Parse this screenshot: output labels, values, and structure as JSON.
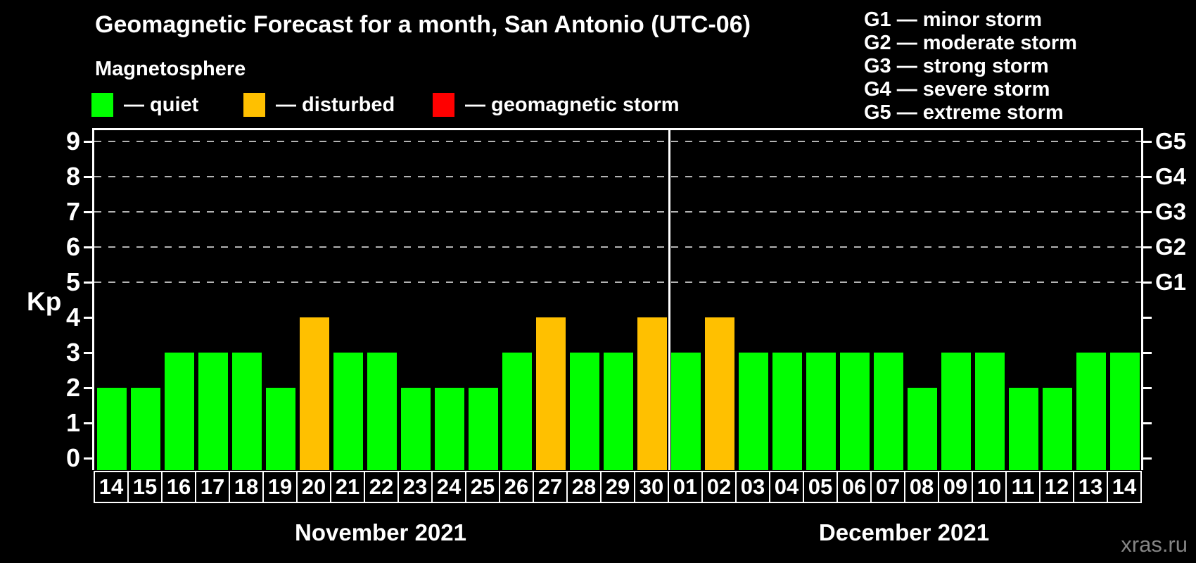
{
  "header": {
    "title": "Geomagnetic Forecast for a month, San Antonio (UTC-06)",
    "subtitle": "Magnetosphere"
  },
  "legend": {
    "items": [
      {
        "name": "quiet",
        "label": "— quiet",
        "color": "#00ff00"
      },
      {
        "name": "disturbed",
        "label": "— disturbed",
        "color": "#ffc000"
      },
      {
        "name": "storm",
        "label": "— geomagnetic storm",
        "color": "#ff0000"
      }
    ]
  },
  "g_scale_legend": {
    "lines": [
      "G1 — minor storm",
      "G2 — moderate storm",
      "G3 — strong storm",
      "G4 — severe storm",
      "G5 — extreme storm"
    ]
  },
  "watermark": "xras.ru",
  "chart_data": {
    "type": "bar",
    "title": "Geomagnetic Forecast for a month, San Antonio (UTC-06)",
    "ylabel": "Kp",
    "ylim": [
      0,
      9
    ],
    "y_ticks": [
      0,
      1,
      2,
      3,
      4,
      5,
      6,
      7,
      8,
      9
    ],
    "gridlines_at_kp": [
      5,
      6,
      7,
      8,
      9
    ],
    "grid_style": "dashed horizontal lines at storm levels only",
    "right_axis_labels": [
      {
        "label": "G1",
        "kp": 5
      },
      {
        "label": "G2",
        "kp": 6
      },
      {
        "label": "G3",
        "kp": 7
      },
      {
        "label": "G4",
        "kp": 8
      },
      {
        "label": "G5",
        "kp": 9
      }
    ],
    "status_colors": {
      "quiet": "#00ff00",
      "disturbed": "#ffc000",
      "storm": "#ff0000"
    },
    "months": [
      {
        "label": "November 2021",
        "days": [
          "14",
          "15",
          "16",
          "17",
          "18",
          "19",
          "20",
          "21",
          "22",
          "23",
          "24",
          "25",
          "26",
          "27",
          "28",
          "29",
          "30"
        ],
        "values": [
          2,
          2,
          3,
          3,
          3,
          2,
          4,
          3,
          3,
          2,
          2,
          2,
          3,
          4,
          3,
          3,
          4
        ],
        "statuses": [
          "quiet",
          "quiet",
          "quiet",
          "quiet",
          "quiet",
          "quiet",
          "disturbed",
          "quiet",
          "quiet",
          "quiet",
          "quiet",
          "quiet",
          "quiet",
          "disturbed",
          "quiet",
          "quiet",
          "disturbed"
        ]
      },
      {
        "label": "December 2021",
        "days": [
          "01",
          "02",
          "03",
          "04",
          "05",
          "06",
          "07",
          "08",
          "09",
          "10",
          "11",
          "12",
          "13",
          "14"
        ],
        "values": [
          3,
          4,
          3,
          3,
          3,
          3,
          3,
          2,
          3,
          3,
          2,
          2,
          3,
          3
        ],
        "statuses": [
          "quiet",
          "disturbed",
          "quiet",
          "quiet",
          "quiet",
          "quiet",
          "quiet",
          "quiet",
          "quiet",
          "quiet",
          "quiet",
          "quiet",
          "quiet",
          "quiet"
        ]
      }
    ]
  }
}
